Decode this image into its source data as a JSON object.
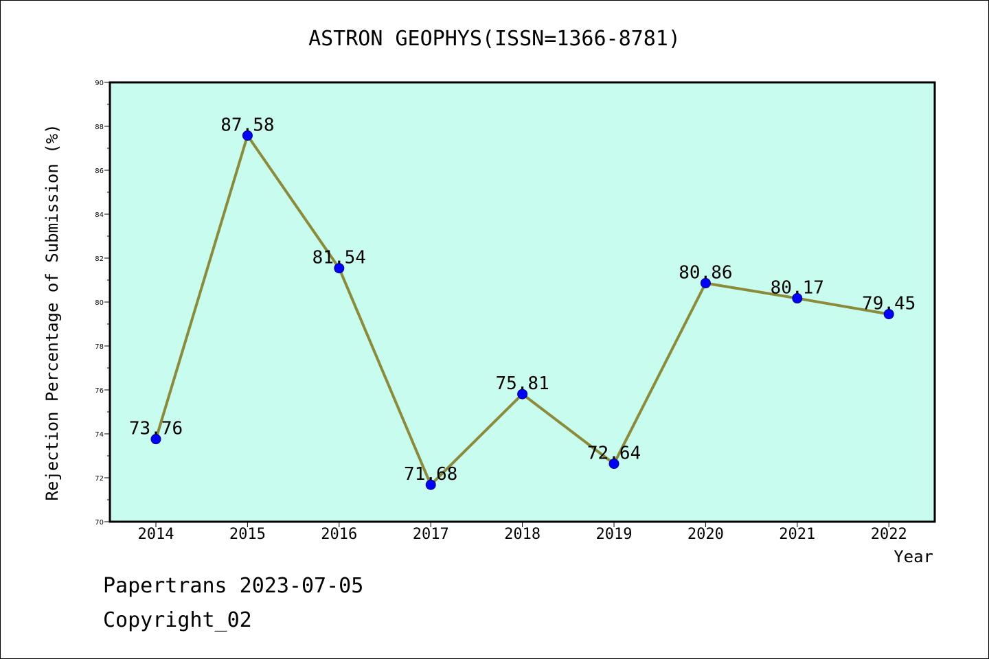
{
  "chart_data": {
    "type": "line",
    "title": "ASTRON GEOPHYS(ISSN=1366-8781)",
    "xlabel": "Year",
    "ylabel": "Rejection Percentage of Submission (%)",
    "categories": [
      "2014",
      "2015",
      "2016",
      "2017",
      "2018",
      "2019",
      "2020",
      "2021",
      "2022"
    ],
    "series": [
      {
        "values": [
          73.76,
          87.58,
          81.54,
          71.68,
          75.81,
          72.64,
          80.86,
          80.17,
          79.45
        ]
      }
    ],
    "data_labels": [
      "73.76",
      "87.58",
      "81.54",
      "71.68",
      "75.81",
      "72.64",
      "80.86",
      "80.17",
      "79.45"
    ],
    "ylim": [
      70,
      90
    ],
    "yticks": [
      "70",
      "72",
      "74",
      "76",
      "78",
      "80",
      "82",
      "84",
      "86",
      "88",
      "90"
    ],
    "grid": false,
    "colors": {
      "plot_background": "#c8fcee",
      "line": "#8b8b3a",
      "marker": "#0000ff"
    }
  },
  "footer": {
    "source": "Papertrans 2023-07-05",
    "copyright": "Copyright_02"
  }
}
